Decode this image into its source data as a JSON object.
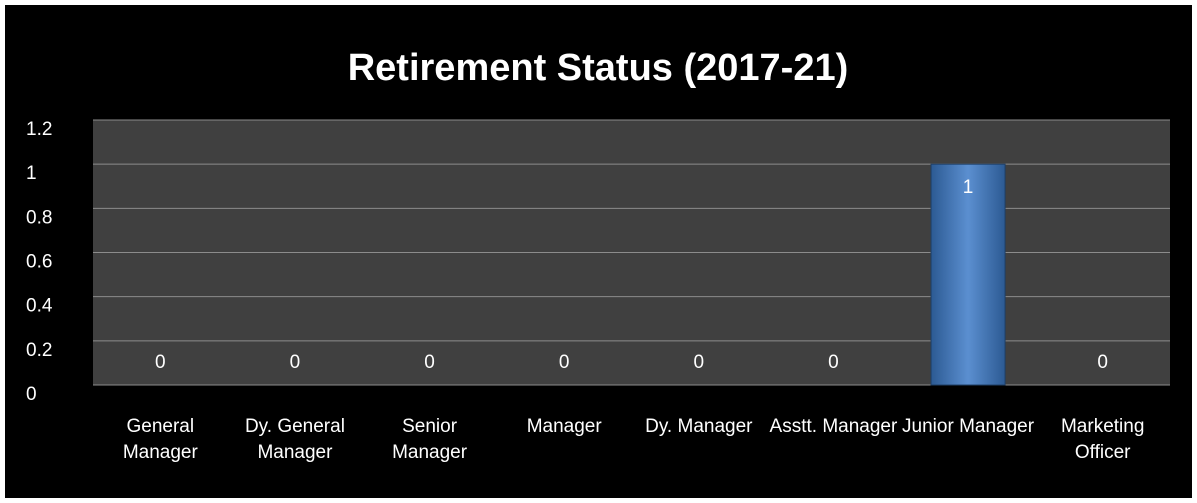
{
  "chart_data": {
    "type": "bar",
    "title": "Retirement Status (2017-21)",
    "categories": [
      "General Manager",
      "Dy. General Manager",
      "Senior Manager",
      "Manager",
      "Dy. Manager",
      "Asstt. Manager",
      "Junior Manager",
      "Marketing Officer"
    ],
    "values": [
      0,
      0,
      0,
      0,
      0,
      0,
      1,
      0
    ],
    "color": "#4f81bd",
    "ylim": [
      0,
      1.2
    ],
    "yticks": [
      0,
      0.2,
      0.4,
      0.6,
      0.8,
      1,
      1.2
    ],
    "grid": true
  }
}
